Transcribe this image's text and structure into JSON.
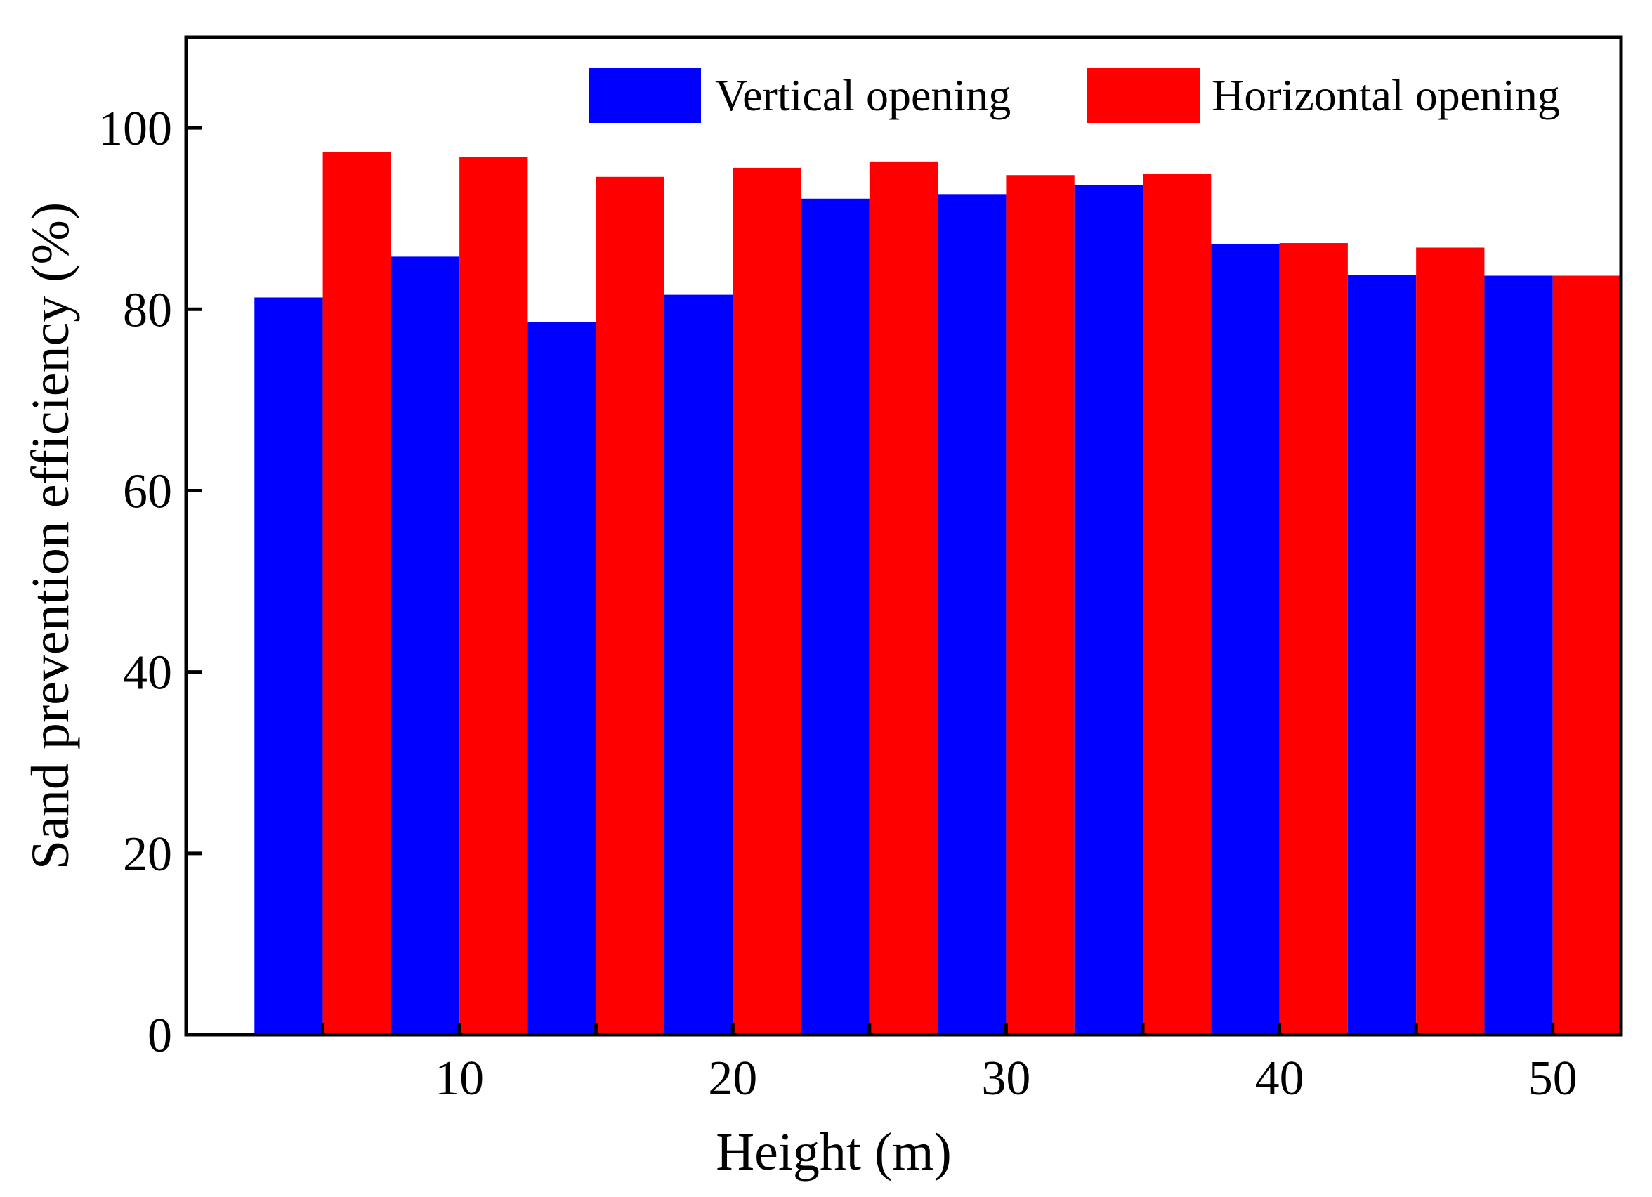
{
  "chart_data": {
    "type": "bar",
    "title": "",
    "xlabel": "Height (m)",
    "ylabel": "Sand prevention efficiency (%)",
    "x": [
      5,
      10,
      15,
      20,
      25,
      30,
      35,
      40,
      45,
      50
    ],
    "xlim": [
      0,
      52.5
    ],
    "ylim": [
      0,
      110
    ],
    "xticks": [
      10,
      20,
      30,
      40,
      50
    ],
    "xtick_labels": [
      "10",
      "20",
      "30",
      "40",
      "50"
    ],
    "yticks": [
      0,
      20,
      40,
      60,
      80,
      100
    ],
    "ytick_labels": [
      "0",
      "20",
      "40",
      "60",
      "80",
      "100"
    ],
    "grid": false,
    "legend_position": "top-right",
    "series": [
      {
        "name": "Vertical opening",
        "color": "#0000ff",
        "values": [
          81.3,
          85.8,
          78.6,
          81.6,
          92.2,
          92.7,
          93.7,
          87.2,
          83.8,
          83.7
        ]
      },
      {
        "name": "Horizontal opening",
        "color": "#ff0000",
        "values": [
          97.3,
          96.8,
          94.6,
          95.6,
          96.3,
          94.8,
          94.9,
          87.3,
          86.8,
          83.7
        ]
      }
    ]
  }
}
